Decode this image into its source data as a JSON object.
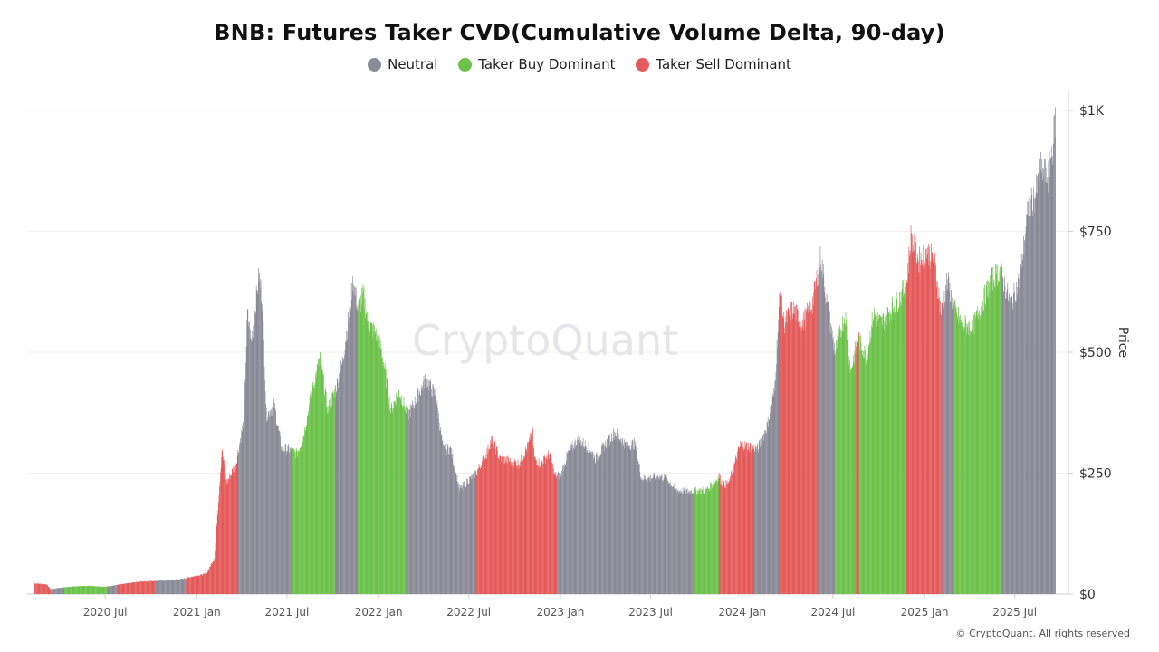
{
  "chart_data": {
    "type": "bar",
    "title": "BNB: Futures Taker CVD(Cumulative Volume Delta, 90-day)",
    "ylabel": "Price",
    "ylim": [
      0,
      1000
    ],
    "yticks": [
      {
        "value": 0,
        "label": "$0"
      },
      {
        "value": 250,
        "label": "$250"
      },
      {
        "value": 500,
        "label": "$500"
      },
      {
        "value": 750,
        "label": "$750"
      },
      {
        "value": 1000,
        "label": "$1K"
      }
    ],
    "xlim": [
      "2020-02-10",
      "2025-09-25"
    ],
    "xticks": [
      {
        "date": "2020-07-01",
        "label": "2020 Jul"
      },
      {
        "date": "2021-01-01",
        "label": "2021 Jan"
      },
      {
        "date": "2021-07-01",
        "label": "2021 Jul"
      },
      {
        "date": "2022-01-01",
        "label": "2022 Jan"
      },
      {
        "date": "2022-07-01",
        "label": "2022 Jul"
      },
      {
        "date": "2023-01-01",
        "label": "2023 Jan"
      },
      {
        "date": "2023-07-01",
        "label": "2023 Jul"
      },
      {
        "date": "2024-01-01",
        "label": "2024 Jan"
      },
      {
        "date": "2024-07-01",
        "label": "2024 Jul"
      },
      {
        "date": "2025-01-01",
        "label": "2025 Jan"
      },
      {
        "date": "2025-07-01",
        "label": "2025 Jul"
      }
    ],
    "grid": true,
    "legend_position": "top-center",
    "legend": [
      {
        "name": "Neutral",
        "color": "#8b8a97"
      },
      {
        "name": "Taker Buy Dominant",
        "color": "#6cc24a"
      },
      {
        "name": "Taker Sell Dominant",
        "color": "#e45b5b"
      }
    ],
    "price_points": [
      [
        "2020-02-12",
        22
      ],
      [
        "2020-03-05",
        20
      ],
      [
        "2020-03-13",
        10
      ],
      [
        "2020-04-01",
        13
      ],
      [
        "2020-05-01",
        16
      ],
      [
        "2020-06-01",
        17
      ],
      [
        "2020-07-01",
        15
      ],
      [
        "2020-08-01",
        20
      ],
      [
        "2020-09-01",
        25
      ],
      [
        "2020-10-01",
        27
      ],
      [
        "2020-11-01",
        28
      ],
      [
        "2020-12-01",
        31
      ],
      [
        "2021-01-01",
        38
      ],
      [
        "2021-01-20",
        42
      ],
      [
        "2021-02-05",
        75
      ],
      [
        "2021-02-20",
        300
      ],
      [
        "2021-03-01",
        230
      ],
      [
        "2021-03-20",
        270
      ],
      [
        "2021-04-05",
        360
      ],
      [
        "2021-04-12",
        580
      ],
      [
        "2021-04-20",
        520
      ],
      [
        "2021-05-05",
        660
      ],
      [
        "2021-05-12",
        610
      ],
      [
        "2021-05-20",
        370
      ],
      [
        "2021-06-05",
        390
      ],
      [
        "2021-06-20",
        300
      ],
      [
        "2021-07-01",
        300
      ],
      [
        "2021-07-20",
        290
      ],
      [
        "2021-08-01",
        320
      ],
      [
        "2021-08-20",
        420
      ],
      [
        "2021-09-05",
        490
      ],
      [
        "2021-09-20",
        380
      ],
      [
        "2021-10-05",
        420
      ],
      [
        "2021-10-20",
        480
      ],
      [
        "2021-11-05",
        600
      ],
      [
        "2021-11-10",
        650
      ],
      [
        "2021-11-20",
        590
      ],
      [
        "2021-12-01",
        620
      ],
      [
        "2021-12-10",
        560
      ],
      [
        "2021-12-25",
        540
      ],
      [
        "2022-01-05",
        510
      ],
      [
        "2022-01-15",
        450
      ],
      [
        "2022-01-25",
        380
      ],
      [
        "2022-02-10",
        420
      ],
      [
        "2022-03-01",
        370
      ],
      [
        "2022-03-25",
        420
      ],
      [
        "2022-04-05",
        445
      ],
      [
        "2022-04-25",
        410
      ],
      [
        "2022-05-10",
        300
      ],
      [
        "2022-05-25",
        300
      ],
      [
        "2022-06-12",
        215
      ],
      [
        "2022-06-25",
        230
      ],
      [
        "2022-07-15",
        250
      ],
      [
        "2022-08-05",
        290
      ],
      [
        "2022-08-15",
        320
      ],
      [
        "2022-09-01",
        280
      ],
      [
        "2022-09-20",
        275
      ],
      [
        "2022-10-10",
        270
      ],
      [
        "2022-10-29",
        310
      ],
      [
        "2022-11-05",
        345
      ],
      [
        "2022-11-09",
        280
      ],
      [
        "2022-11-20",
        270
      ],
      [
        "2022-12-10",
        290
      ],
      [
        "2022-12-20",
        245
      ],
      [
        "2023-01-01",
        245
      ],
      [
        "2023-01-15",
        290
      ],
      [
        "2023-02-05",
        320
      ],
      [
        "2023-03-01",
        300
      ],
      [
        "2023-03-12",
        280
      ],
      [
        "2023-04-05",
        315
      ],
      [
        "2023-04-20",
        335
      ],
      [
        "2023-05-10",
        310
      ],
      [
        "2023-05-30",
        310
      ],
      [
        "2023-06-12",
        240
      ],
      [
        "2023-06-30",
        240
      ],
      [
        "2023-07-15",
        245
      ],
      [
        "2023-08-01",
        240
      ],
      [
        "2023-08-20",
        215
      ],
      [
        "2023-09-10",
        212
      ],
      [
        "2023-10-01",
        213
      ],
      [
        "2023-10-20",
        215
      ],
      [
        "2023-11-05",
        230
      ],
      [
        "2023-11-15",
        245
      ],
      [
        "2023-11-22",
        225
      ],
      [
        "2023-12-05",
        230
      ],
      [
        "2023-12-28",
        310
      ],
      [
        "2024-01-15",
        305
      ],
      [
        "2024-02-01",
        300
      ],
      [
        "2024-02-20",
        350
      ],
      [
        "2024-03-05",
        420
      ],
      [
        "2024-03-16",
        620
      ],
      [
        "2024-03-25",
        560
      ],
      [
        "2024-04-10",
        590
      ],
      [
        "2024-05-01",
        560
      ],
      [
        "2024-05-20",
        600
      ],
      [
        "2024-06-06",
        700
      ],
      [
        "2024-06-20",
        590
      ],
      [
        "2024-07-05",
        500
      ],
      [
        "2024-07-25",
        580
      ],
      [
        "2024-08-05",
        460
      ],
      [
        "2024-08-20",
        530
      ],
      [
        "2024-09-06",
        490
      ],
      [
        "2024-09-20",
        580
      ],
      [
        "2024-10-05",
        560
      ],
      [
        "2024-10-25",
        590
      ],
      [
        "2024-11-10",
        610
      ],
      [
        "2024-11-25",
        640
      ],
      [
        "2024-12-04",
        740
      ],
      [
        "2024-12-20",
        690
      ],
      [
        "2025-01-05",
        710
      ],
      [
        "2025-01-20",
        690
      ],
      [
        "2025-02-03",
        580
      ],
      [
        "2025-02-15",
        650
      ],
      [
        "2025-03-01",
        590
      ],
      [
        "2025-03-15",
        560
      ],
      [
        "2025-04-07",
        550
      ],
      [
        "2025-04-25",
        600
      ],
      [
        "2025-05-15",
        650
      ],
      [
        "2025-06-01",
        670
      ],
      [
        "2025-06-22",
        600
      ],
      [
        "2025-07-10",
        650
      ],
      [
        "2025-07-28",
        800
      ],
      [
        "2025-08-10",
        820
      ],
      [
        "2025-08-22",
        880
      ],
      [
        "2025-09-05",
        860
      ],
      [
        "2025-09-15",
        930
      ],
      [
        "2025-09-20",
        990
      ]
    ],
    "regimes": [
      {
        "start": "2020-02-10",
        "end": "2020-03-15",
        "state": "Taker Sell Dominant"
      },
      {
        "start": "2020-03-15",
        "end": "2020-04-10",
        "state": "Neutral"
      },
      {
        "start": "2020-04-10",
        "end": "2020-07-05",
        "state": "Taker Buy Dominant"
      },
      {
        "start": "2020-07-05",
        "end": "2020-07-25",
        "state": "Neutral"
      },
      {
        "start": "2020-07-25",
        "end": "2020-10-10",
        "state": "Taker Sell Dominant"
      },
      {
        "start": "2020-10-10",
        "end": "2020-12-10",
        "state": "Neutral"
      },
      {
        "start": "2020-12-10",
        "end": "2021-03-25",
        "state": "Taker Sell Dominant"
      },
      {
        "start": "2021-03-25",
        "end": "2021-07-10",
        "state": "Neutral"
      },
      {
        "start": "2021-07-10",
        "end": "2021-10-05",
        "state": "Taker Buy Dominant"
      },
      {
        "start": "2021-10-05",
        "end": "2021-11-20",
        "state": "Neutral"
      },
      {
        "start": "2021-11-20",
        "end": "2022-02-25",
        "state": "Taker Buy Dominant"
      },
      {
        "start": "2022-02-25",
        "end": "2022-07-15",
        "state": "Neutral"
      },
      {
        "start": "2022-07-15",
        "end": "2022-12-25",
        "state": "Taker Sell Dominant"
      },
      {
        "start": "2022-12-25",
        "end": "2023-09-25",
        "state": "Neutral"
      },
      {
        "start": "2023-09-25",
        "end": "2023-11-15",
        "state": "Taker Buy Dominant"
      },
      {
        "start": "2023-11-15",
        "end": "2024-01-25",
        "state": "Taker Sell Dominant"
      },
      {
        "start": "2024-01-25",
        "end": "2024-03-15",
        "state": "Neutral"
      },
      {
        "start": "2024-03-15",
        "end": "2024-06-01",
        "state": "Taker Sell Dominant"
      },
      {
        "start": "2024-06-01",
        "end": "2024-07-05",
        "state": "Neutral"
      },
      {
        "start": "2024-07-05",
        "end": "2024-08-15",
        "state": "Taker Buy Dominant"
      },
      {
        "start": "2024-08-15",
        "end": "2024-08-22",
        "state": "Taker Sell Dominant"
      },
      {
        "start": "2024-08-22",
        "end": "2024-11-25",
        "state": "Taker Buy Dominant"
      },
      {
        "start": "2024-11-25",
        "end": "2025-02-05",
        "state": "Taker Sell Dominant"
      },
      {
        "start": "2025-02-05",
        "end": "2025-03-01",
        "state": "Neutral"
      },
      {
        "start": "2025-03-01",
        "end": "2025-06-05",
        "state": "Taker Buy Dominant"
      },
      {
        "start": "2025-06-05",
        "end": "2025-09-25",
        "state": "Neutral"
      }
    ]
  },
  "watermark": "CryptoQuant",
  "copyright": "© CryptoQuant. All rights reserved"
}
